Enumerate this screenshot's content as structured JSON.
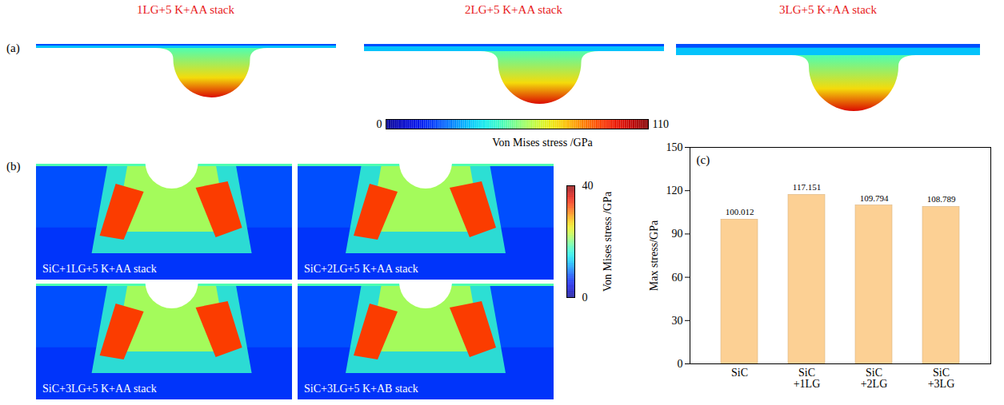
{
  "panel_a": {
    "letter": "(a)",
    "titles": [
      "1LG+5 K+AA stack",
      "2LG+5 K+AA stack",
      "3LG+5 K+AA stack"
    ],
    "colorbar": {
      "label": "Von Mises stress /GPa",
      "range": [
        0,
        110
      ],
      "ticks": [
        0,
        110
      ]
    }
  },
  "panel_b": {
    "letter": "(b)",
    "labels": [
      "SiC+1LG+5 K+AA stack",
      "SiC+2LG+5 K+AA stack",
      "SiC+3LG+5 K+AA stack",
      "SiC+3LG+5 K+AB stack"
    ],
    "colorbar": {
      "label": "Von Mises stress /GPa",
      "range": [
        0,
        40
      ],
      "ticks": [
        0,
        40
      ]
    }
  },
  "chart_data": {
    "type": "bar",
    "annotations": [
      "(c)"
    ],
    "categories": [
      "SiC",
      "SiC\n+1LG",
      "SiC\n+2LG",
      "SiC\n+3LG"
    ],
    "values": [
      100.012,
      117.151,
      109.794,
      108.789
    ],
    "ylabel": "Max stress/GPa",
    "ylim": [
      0,
      150
    ],
    "yticks": [
      0,
      30,
      60,
      90,
      120,
      150
    ],
    "color": "#fcd094",
    "data_labels": true
  }
}
